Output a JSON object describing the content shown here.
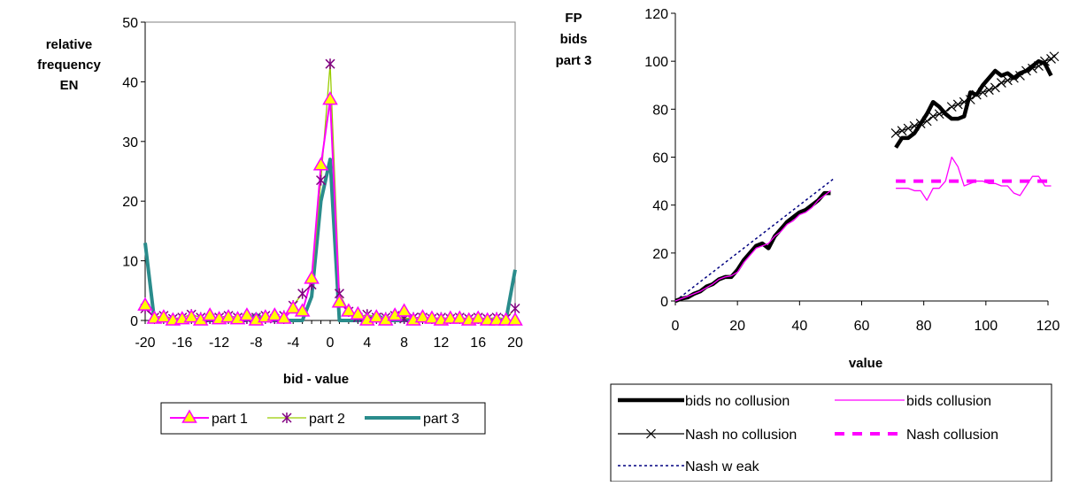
{
  "chart_data": [
    {
      "type": "line",
      "ylabel_lines": [
        "relative",
        "frequency",
        "EN"
      ],
      "xlabel": "bid - value",
      "xlim": [
        -20,
        20
      ],
      "ylim": [
        0,
        50
      ],
      "x_ticks": [
        -20,
        -16,
        -12,
        -8,
        -4,
        0,
        4,
        8,
        12,
        16,
        20
      ],
      "y_ticks": [
        0,
        10,
        20,
        30,
        40,
        50
      ],
      "grid": false,
      "legend_position": "bottom",
      "x": [
        -20,
        -19,
        -18,
        -17,
        -16,
        -15,
        -14,
        -13,
        -12,
        -11,
        -10,
        -9,
        -8,
        -7,
        -6,
        -5,
        -4,
        -3,
        -2,
        -1,
        0,
        1,
        2,
        3,
        4,
        5,
        6,
        7,
        8,
        9,
        10,
        11,
        12,
        13,
        14,
        15,
        16,
        17,
        18,
        19,
        20
      ],
      "series": [
        {
          "name": "part 1",
          "color": "#ff00ff",
          "marker": "triangle",
          "values": [
            2.5,
            0.3,
            0.5,
            0,
            0.2,
            0.5,
            0,
            0.8,
            0.2,
            0.5,
            0.2,
            0.8,
            0,
            0.5,
            0.8,
            0.3,
            2,
            1.5,
            7,
            26,
            37,
            3,
            1.5,
            1,
            0,
            0.5,
            0,
            0.8,
            1.5,
            0,
            0.5,
            0.3,
            0,
            0.3,
            0.3,
            0,
            0.3,
            0,
            0,
            0,
            0
          ]
        },
        {
          "name": "part 2",
          "color": "#99cc00",
          "marker": "star",
          "values": [
            2,
            0.5,
            0.8,
            0.3,
            0.5,
            1,
            0.5,
            0.3,
            0.5,
            0.8,
            0.5,
            0.3,
            0.5,
            0.8,
            0.3,
            0.8,
            2.5,
            4.5,
            6,
            23.5,
            43,
            4.5,
            1.5,
            0.5,
            1,
            0.5,
            0.5,
            0.8,
            0.3,
            0.5,
            0.5,
            0.3,
            0.5,
            0.3,
            0.5,
            0.3,
            0.5,
            0.3,
            0.5,
            0.3,
            2
          ]
        },
        {
          "name": "part 3",
          "color": "#2a8c8c",
          "marker": "none",
          "values": [
            13,
            0,
            0,
            0,
            0,
            0,
            0,
            0,
            0,
            0,
            0,
            0,
            1,
            0,
            0,
            0,
            0,
            0,
            4,
            20,
            27,
            0,
            0,
            0,
            0,
            1,
            0,
            0,
            0,
            0,
            0,
            0,
            0,
            0,
            0,
            0,
            0,
            0,
            0,
            0,
            8.5
          ]
        }
      ]
    },
    {
      "type": "line",
      "ylabel_lines": [
        "FP",
        "bids",
        "part 3"
      ],
      "xlabel": "value",
      "xlim": [
        0,
        120
      ],
      "ylim": [
        0,
        120
      ],
      "x_ticks": [
        0,
        20,
        40,
        60,
        80,
        100,
        120
      ],
      "y_ticks": [
        0,
        20,
        40,
        60,
        80,
        100,
        120
      ],
      "grid": false,
      "legend_position": "bottom",
      "series": [
        {
          "name": "bids no collusion",
          "color": "#000000",
          "style": "thick",
          "segments": [
            [
              [
                0,
                0
              ],
              [
                2,
                1
              ],
              [
                4,
                1.5
              ],
              [
                6,
                3
              ],
              [
                8,
                4
              ],
              [
                10,
                6
              ],
              [
                12,
                7
              ],
              [
                14,
                9
              ],
              [
                16,
                10
              ],
              [
                18,
                10
              ],
              [
                20,
                13
              ],
              [
                22,
                17
              ],
              [
                24,
                20
              ],
              [
                26,
                23
              ],
              [
                28,
                24
              ],
              [
                30,
                22
              ],
              [
                32,
                27
              ],
              [
                34,
                30
              ],
              [
                36,
                33
              ],
              [
                38,
                35
              ],
              [
                40,
                37
              ],
              [
                42,
                38
              ],
              [
                44,
                40
              ],
              [
                46,
                42
              ],
              [
                48,
                45
              ],
              [
                50,
                45
              ]
            ],
            [
              [
                71,
                64
              ],
              [
                73,
                68
              ],
              [
                75,
                68
              ],
              [
                77,
                70
              ],
              [
                79,
                74
              ],
              [
                81,
                78
              ],
              [
                83,
                83
              ],
              [
                85,
                81
              ],
              [
                87,
                78
              ],
              [
                89,
                76
              ],
              [
                91,
                76
              ],
              [
                93,
                77
              ],
              [
                95,
                87
              ],
              [
                97,
                86
              ],
              [
                99,
                90
              ],
              [
                101,
                93
              ],
              [
                103,
                96
              ],
              [
                105,
                94
              ],
              [
                107,
                95
              ],
              [
                109,
                93
              ],
              [
                111,
                95
              ],
              [
                113,
                96
              ],
              [
                115,
                98
              ],
              [
                117,
                100
              ],
              [
                119,
                99
              ],
              [
                121,
                94
              ]
            ]
          ]
        },
        {
          "name": "bids collusion",
          "color": "#ff00ff",
          "style": "thin",
          "segments": [
            [
              [
                0,
                0
              ],
              [
                2,
                1
              ],
              [
                4,
                2
              ],
              [
                6,
                3
              ],
              [
                8,
                4
              ],
              [
                10,
                5.5
              ],
              [
                12,
                7
              ],
              [
                14,
                9
              ],
              [
                16,
                10
              ],
              [
                18,
                10.5
              ],
              [
                20,
                12
              ],
              [
                22,
                16
              ],
              [
                24,
                19
              ],
              [
                26,
                22
              ],
              [
                28,
                23
              ],
              [
                30,
                24
              ],
              [
                32,
                27
              ],
              [
                34,
                29
              ],
              [
                36,
                32
              ],
              [
                38,
                33.5
              ],
              [
                40,
                36
              ],
              [
                42,
                37
              ],
              [
                44,
                39
              ],
              [
                46,
                42
              ],
              [
                48,
                44
              ],
              [
                50,
                46
              ]
            ],
            [
              [
                71,
                47
              ],
              [
                73,
                47
              ],
              [
                75,
                47
              ],
              [
                77,
                46
              ],
              [
                79,
                46
              ],
              [
                81,
                42
              ],
              [
                83,
                47
              ],
              [
                85,
                47
              ],
              [
                87,
                50
              ],
              [
                89,
                60
              ],
              [
                91,
                56
              ],
              [
                93,
                48
              ],
              [
                95,
                49
              ],
              [
                97,
                50
              ],
              [
                99,
                50
              ],
              [
                101,
                49
              ],
              [
                103,
                49
              ],
              [
                105,
                48
              ],
              [
                107,
                48
              ],
              [
                109,
                45
              ],
              [
                111,
                44
              ],
              [
                113,
                48
              ],
              [
                115,
                52
              ],
              [
                117,
                52
              ],
              [
                119,
                48
              ],
              [
                121,
                48
              ]
            ]
          ]
        },
        {
          "name": "Nash no collusion",
          "color": "#000000",
          "style": "cross",
          "segments": [
            [
              [
                71,
                70
              ],
              [
                73,
                71
              ],
              [
                75,
                72
              ],
              [
                77,
                73
              ],
              [
                79,
                74
              ],
              [
                81,
                75
              ],
              [
                83,
                77
              ],
              [
                85,
                78
              ],
              [
                87,
                79
              ],
              [
                89,
                81
              ],
              [
                91,
                82
              ],
              [
                93,
                83
              ],
              [
                95,
                84
              ],
              [
                97,
                86
              ],
              [
                99,
                87
              ],
              [
                101,
                88
              ],
              [
                103,
                89
              ],
              [
                105,
                91
              ],
              [
                107,
                92
              ],
              [
                109,
                93
              ],
              [
                111,
                94
              ],
              [
                113,
                96
              ],
              [
                115,
                97
              ],
              [
                117,
                98
              ],
              [
                119,
                100
              ],
              [
                121,
                101
              ],
              [
                122,
                102
              ]
            ]
          ]
        },
        {
          "name": "Nash collusion",
          "color": "#ff00ff",
          "style": "dash",
          "segments": [
            [
              [
                71,
                50
              ],
              [
                121,
                50
              ]
            ]
          ]
        },
        {
          "name": "Nash w eak",
          "color": "#000080",
          "style": "dot",
          "segments": [
            [
              [
                0,
                0
              ],
              [
                51,
                51
              ]
            ]
          ]
        }
      ]
    }
  ]
}
